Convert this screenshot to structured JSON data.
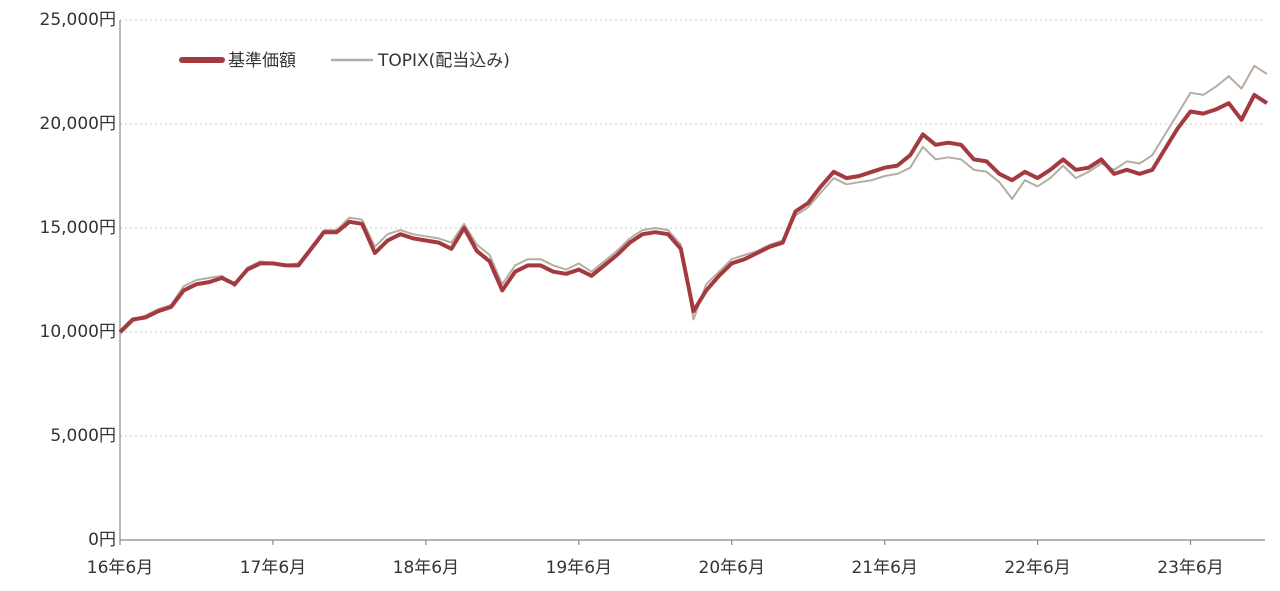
{
  "chart_data": {
    "type": "line",
    "categories": [
      "16年6月",
      null,
      null,
      null,
      null,
      null,
      null,
      null,
      null,
      null,
      null,
      null,
      "17年6月",
      null,
      null,
      null,
      null,
      null,
      null,
      null,
      null,
      null,
      null,
      null,
      "18年6月",
      null,
      null,
      null,
      null,
      null,
      null,
      null,
      null,
      null,
      null,
      null,
      "19年6月",
      null,
      null,
      null,
      null,
      null,
      null,
      null,
      null,
      null,
      null,
      null,
      "20年6月",
      null,
      null,
      null,
      null,
      null,
      null,
      null,
      null,
      null,
      null,
      null,
      "21年6月",
      null,
      null,
      null,
      null,
      null,
      null,
      null,
      null,
      null,
      null,
      null,
      "22年6月",
      null,
      null,
      null,
      null,
      null,
      null,
      null,
      null,
      null,
      null,
      null,
      "23年6月",
      null,
      null,
      null,
      null,
      null,
      null
    ],
    "series": [
      {
        "name": "基準価額",
        "color": "#a33a40",
        "values": [
          10000,
          10600,
          10700,
          11000,
          11200,
          12000,
          12300,
          12400,
          12600,
          12300,
          13000,
          13300,
          13300,
          13200,
          13200,
          14000,
          14800,
          14800,
          15300,
          15200,
          13800,
          14400,
          14700,
          14500,
          14400,
          14300,
          14000,
          15000,
          13900,
          13400,
          12000,
          12900,
          13200,
          13200,
          12900,
          12800,
          13000,
          12700,
          13200,
          13700,
          14300,
          14700,
          14800,
          14700,
          14000,
          11000,
          12000,
          12700,
          13300,
          13500,
          13800,
          14100,
          14300,
          15800,
          16200,
          17000,
          17700,
          17400,
          17500,
          17700,
          17900,
          18000,
          18500,
          19500,
          19000,
          19100,
          19000,
          18300,
          18200,
          17600,
          17300,
          17700,
          17400,
          17800,
          18300,
          17800,
          17900,
          18300,
          17600,
          17800,
          17600,
          17800,
          18800,
          19800,
          20600,
          20500,
          20700,
          21000,
          20200,
          21400,
          21000
        ]
      },
      {
        "name": "TOPIX(配当込み)",
        "color": "#b7aca3",
        "values": [
          9900,
          10500,
          10800,
          11100,
          11300,
          12200,
          12500,
          12600,
          12700,
          12200,
          13100,
          13400,
          13300,
          13200,
          13300,
          14100,
          14900,
          14900,
          15500,
          15400,
          14100,
          14700,
          14900,
          14700,
          14600,
          14500,
          14300,
          15200,
          14200,
          13700,
          12300,
          13200,
          13500,
          13500,
          13200,
          13000,
          13300,
          12900,
          13400,
          13900,
          14500,
          14900,
          15000,
          14900,
          14200,
          10600,
          12300,
          12900,
          13500,
          13700,
          13900,
          14200,
          14400,
          15600,
          16000,
          16700,
          17400,
          17100,
          17200,
          17300,
          17500,
          17600,
          17900,
          18900,
          18300,
          18400,
          18300,
          17800,
          17700,
          17200,
          16400,
          17300,
          17000,
          17400,
          18000,
          17400,
          17700,
          18100,
          17800,
          18200,
          18100,
          18500,
          19500,
          20500,
          21500,
          21400,
          21800,
          22300,
          21700,
          22800,
          22400
        ]
      }
    ],
    "ylim": [
      0,
      25000
    ],
    "yticks": [
      {
        "value": 0,
        "label": "0円"
      },
      {
        "value": 5000,
        "label": "5,000円"
      },
      {
        "value": 10000,
        "label": "10,000円"
      },
      {
        "value": 15000,
        "label": "15,000円"
      },
      {
        "value": 20000,
        "label": "20,000円"
      },
      {
        "value": 25000,
        "label": "25,000円"
      }
    ],
    "grid": true,
    "legend": "top-left"
  }
}
